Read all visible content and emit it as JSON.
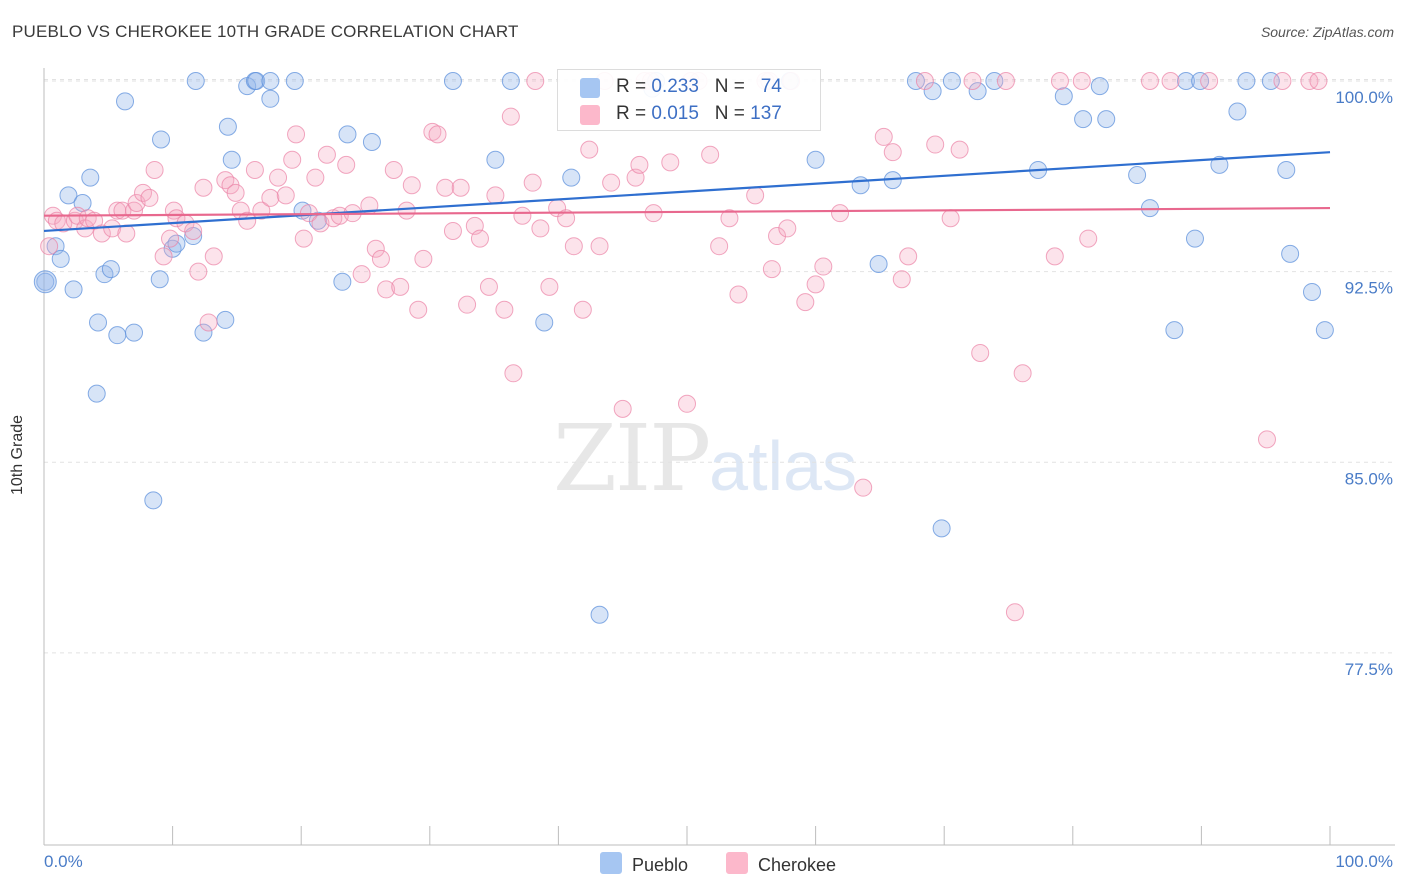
{
  "title": "PUEBLO VS CHEROKEE 10TH GRADE CORRELATION CHART",
  "source": "Source: ZipAtlas.com",
  "watermark": {
    "zip": "ZIP",
    "atlas": "atlas"
  },
  "stats": [
    {
      "r_label": "R = ",
      "r_value": "0.233",
      "n_label": "N = ",
      "n_value": "74",
      "color": "#a9c6ee"
    },
    {
      "r_label": "R = ",
      "r_value": "0.015",
      "n_label": "N = ",
      "n_value": "137",
      "color": "#f7b9cb"
    }
  ],
  "legend": [
    {
      "name": "Pueblo",
      "color": "#a9c6ee"
    },
    {
      "name": "Cherokee",
      "color": "#f7b9cb"
    }
  ],
  "chart_data": {
    "type": "scatter",
    "title": "PUEBLO VS CHEROKEE 10TH GRADE CORRELATION CHART",
    "ylabel": "10th Grade",
    "xlabel": "",
    "xlim": [
      0,
      100
    ],
    "ylim": [
      70,
      101
    ],
    "x_tick_labels": [
      "0.0%",
      "100.0%"
    ],
    "y_ticks": [
      77.5,
      85.0,
      92.5,
      100.0
    ],
    "y_tick_labels": [
      "77.5%",
      "85.0%",
      "92.5%",
      "100.0%"
    ],
    "grid": true,
    "legend_position": "bottom-center",
    "series": [
      {
        "name": "Pueblo",
        "color": "#6a9fe0",
        "trend": {
          "x": [
            0,
            100
          ],
          "y": [
            94.1,
            97.2
          ],
          "color": "#2f6fd0"
        },
        "points": [
          [
            0.1,
            92.1
          ],
          [
            0.9,
            93.5
          ],
          [
            1.3,
            93.0
          ],
          [
            1.9,
            95.5
          ],
          [
            2.3,
            91.8
          ],
          [
            3.0,
            95.2
          ],
          [
            3.6,
            96.2
          ],
          [
            4.1,
            87.7
          ],
          [
            4.2,
            90.5
          ],
          [
            4.7,
            92.4
          ],
          [
            5.2,
            92.6
          ],
          [
            5.7,
            90.0
          ],
          [
            6.3,
            99.2
          ],
          [
            7.0,
            90.1
          ],
          [
            8.5,
            83.5
          ],
          [
            9.0,
            92.2
          ],
          [
            9.1,
            97.7
          ],
          [
            10.0,
            93.4
          ],
          [
            10.3,
            93.6
          ],
          [
            11.6,
            93.9
          ],
          [
            11.8,
            100.0
          ],
          [
            12.4,
            90.1
          ],
          [
            14.1,
            90.6
          ],
          [
            14.3,
            98.2
          ],
          [
            14.6,
            96.9
          ],
          [
            15.8,
            99.8
          ],
          [
            16.4,
            100.0
          ],
          [
            16.5,
            100.0
          ],
          [
            17.6,
            99.3
          ],
          [
            17.6,
            100.0
          ],
          [
            19.5,
            100.0
          ],
          [
            20.1,
            94.9
          ],
          [
            21.3,
            94.5
          ],
          [
            23.2,
            92.1
          ],
          [
            23.6,
            97.9
          ],
          [
            25.5,
            97.6
          ],
          [
            31.8,
            100.0
          ],
          [
            35.1,
            96.9
          ],
          [
            36.3,
            100.0
          ],
          [
            38.9,
            90.5
          ],
          [
            41.0,
            96.2
          ],
          [
            43.2,
            79.0
          ],
          [
            47.3,
            99.7
          ],
          [
            47.6,
            100.0
          ],
          [
            58.0,
            100.0
          ],
          [
            60.0,
            96.9
          ],
          [
            63.5,
            95.9
          ],
          [
            64.9,
            92.8
          ],
          [
            66.0,
            96.1
          ],
          [
            67.8,
            100.0
          ],
          [
            69.1,
            99.6
          ],
          [
            69.8,
            82.4
          ],
          [
            70.6,
            100.0
          ],
          [
            72.6,
            99.6
          ],
          [
            73.9,
            100.0
          ],
          [
            77.3,
            96.5
          ],
          [
            79.3,
            99.4
          ],
          [
            80.8,
            98.5
          ],
          [
            82.1,
            99.8
          ],
          [
            82.6,
            98.5
          ],
          [
            85.0,
            96.3
          ],
          [
            86.0,
            95.0
          ],
          [
            87.9,
            90.2
          ],
          [
            88.8,
            100.0
          ],
          [
            89.5,
            93.8
          ],
          [
            89.9,
            100.0
          ],
          [
            91.4,
            96.7
          ],
          [
            92.8,
            98.8
          ],
          [
            93.5,
            100.0
          ],
          [
            95.4,
            100.0
          ],
          [
            96.6,
            96.5
          ],
          [
            96.9,
            93.2
          ],
          [
            98.6,
            91.7
          ],
          [
            99.6,
            90.2
          ]
        ]
      },
      {
        "name": "Cherokee",
        "color": "#f090ad",
        "trend": {
          "x": [
            0,
            100
          ],
          "y": [
            94.7,
            95.0
          ],
          "color": "#e8688e"
        },
        "points": [
          [
            0.4,
            93.5
          ],
          [
            0.7,
            94.7
          ],
          [
            1.0,
            94.5
          ],
          [
            1.5,
            94.4
          ],
          [
            2.4,
            94.5
          ],
          [
            2.6,
            94.7
          ],
          [
            3.2,
            94.2
          ],
          [
            3.4,
            94.6
          ],
          [
            3.9,
            94.5
          ],
          [
            4.5,
            94.0
          ],
          [
            5.3,
            94.2
          ],
          [
            5.7,
            94.9
          ],
          [
            6.1,
            94.9
          ],
          [
            6.4,
            94.0
          ],
          [
            7.0,
            94.9
          ],
          [
            7.2,
            95.2
          ],
          [
            7.7,
            95.6
          ],
          [
            8.2,
            95.4
          ],
          [
            8.6,
            96.5
          ],
          [
            9.3,
            93.1
          ],
          [
            9.8,
            93.8
          ],
          [
            10.1,
            94.9
          ],
          [
            10.3,
            94.6
          ],
          [
            11.0,
            94.4
          ],
          [
            11.6,
            94.1
          ],
          [
            12.0,
            92.5
          ],
          [
            12.4,
            95.8
          ],
          [
            12.8,
            90.5
          ],
          [
            13.2,
            93.1
          ],
          [
            14.1,
            96.1
          ],
          [
            14.5,
            95.9
          ],
          [
            14.9,
            95.6
          ],
          [
            15.3,
            94.9
          ],
          [
            15.8,
            94.5
          ],
          [
            16.4,
            96.5
          ],
          [
            16.9,
            94.9
          ],
          [
            17.6,
            95.4
          ],
          [
            18.2,
            96.2
          ],
          [
            18.8,
            95.5
          ],
          [
            19.3,
            96.9
          ],
          [
            19.6,
            97.9
          ],
          [
            20.2,
            93.8
          ],
          [
            20.6,
            94.8
          ],
          [
            21.1,
            96.2
          ],
          [
            21.5,
            94.4
          ],
          [
            22.0,
            97.1
          ],
          [
            22.5,
            94.6
          ],
          [
            23.0,
            94.7
          ],
          [
            23.5,
            96.7
          ],
          [
            24.0,
            94.8
          ],
          [
            24.7,
            92.4
          ],
          [
            25.3,
            95.1
          ],
          [
            25.8,
            93.4
          ],
          [
            26.2,
            93.0
          ],
          [
            26.6,
            91.8
          ],
          [
            27.2,
            96.5
          ],
          [
            27.7,
            91.9
          ],
          [
            28.2,
            94.9
          ],
          [
            28.6,
            95.9
          ],
          [
            29.1,
            91.0
          ],
          [
            29.5,
            93.0
          ],
          [
            30.2,
            98.0
          ],
          [
            30.6,
            97.9
          ],
          [
            31.2,
            95.8
          ],
          [
            31.8,
            94.1
          ],
          [
            32.4,
            95.8
          ],
          [
            32.9,
            91.2
          ],
          [
            33.5,
            94.3
          ],
          [
            33.9,
            93.8
          ],
          [
            34.6,
            91.9
          ],
          [
            35.1,
            95.5
          ],
          [
            35.8,
            91.0
          ],
          [
            36.3,
            98.6
          ],
          [
            36.5,
            88.5
          ],
          [
            37.2,
            94.7
          ],
          [
            38.0,
            96.0
          ],
          [
            38.6,
            94.2
          ],
          [
            39.3,
            91.9
          ],
          [
            39.9,
            95.0
          ],
          [
            40.6,
            94.6
          ],
          [
            41.2,
            93.5
          ],
          [
            41.9,
            91.0
          ],
          [
            42.4,
            97.3
          ],
          [
            43.2,
            93.5
          ],
          [
            44.1,
            96.0
          ],
          [
            45.0,
            87.1
          ],
          [
            46.0,
            96.2
          ],
          [
            46.3,
            96.7
          ],
          [
            47.4,
            94.8
          ],
          [
            48.7,
            96.8
          ],
          [
            50.0,
            87.3
          ],
          [
            51.8,
            97.1
          ],
          [
            52.5,
            93.5
          ],
          [
            53.3,
            94.6
          ],
          [
            54.0,
            91.6
          ],
          [
            55.3,
            95.5
          ],
          [
            56.6,
            92.6
          ],
          [
            57.0,
            93.9
          ],
          [
            57.8,
            94.2
          ],
          [
            59.2,
            91.3
          ],
          [
            60.0,
            92.0
          ],
          [
            60.6,
            92.7
          ],
          [
            61.9,
            94.8
          ],
          [
            63.7,
            84.0
          ],
          [
            65.3,
            97.8
          ],
          [
            66.0,
            97.2
          ],
          [
            66.7,
            92.2
          ],
          [
            67.2,
            93.1
          ],
          [
            69.3,
            97.5
          ],
          [
            70.5,
            94.6
          ],
          [
            71.2,
            97.3
          ],
          [
            72.8,
            89.3
          ],
          [
            75.5,
            79.1
          ],
          [
            76.1,
            88.5
          ],
          [
            78.6,
            93.1
          ],
          [
            79.0,
            100.0
          ],
          [
            81.2,
            93.8
          ],
          [
            87.6,
            100.0
          ],
          [
            90.6,
            100.0
          ],
          [
            95.1,
            85.9
          ],
          [
            96.3,
            100.0
          ],
          [
            98.4,
            100.0
          ],
          [
            99.1,
            100.0
          ],
          [
            38.2,
            100.0
          ],
          [
            43.6,
            100.0
          ],
          [
            46.7,
            100.0
          ],
          [
            47.2,
            100.0
          ],
          [
            50.3,
            100.0
          ],
          [
            50.9,
            100.0
          ],
          [
            56.1,
            100.0
          ],
          [
            56.4,
            100.0
          ],
          [
            58.1,
            100.0
          ],
          [
            68.5,
            100.0
          ],
          [
            72.2,
            100.0
          ],
          [
            74.8,
            100.0
          ],
          [
            80.7,
            100.0
          ],
          [
            86.0,
            100.0
          ]
        ]
      }
    ]
  }
}
